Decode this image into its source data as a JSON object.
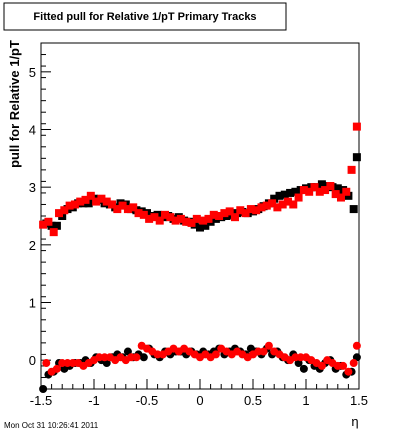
{
  "chart_data": {
    "type": "scatter",
    "title": "Fitted pull for Relative 1/pT  Primary Tracks",
    "xlabel": "η",
    "ylabel": "pull for Relative 1/pT",
    "xlim": [
      -1.5,
      1.5
    ],
    "ylim": [
      -0.5,
      5.5
    ],
    "xticks": [
      "-1.5",
      "-1",
      "-0.5",
      "0",
      "0.5",
      "1",
      "1.5"
    ],
    "yticks": [
      "0",
      "1",
      "2",
      "3",
      "4",
      "5"
    ],
    "timestamp": "Mon Oct 31 10:26:41 2011",
    "colors": {
      "black": "#000000",
      "red": "#ff0000",
      "axis": "#000000"
    },
    "series": [
      {
        "marker": "square",
        "color": "#000000",
        "points": [
          [
            -1.45,
            2.37
          ],
          [
            -1.4,
            2.33
          ],
          [
            -1.35,
            2.33
          ],
          [
            -1.3,
            2.5
          ],
          [
            -1.25,
            2.62
          ],
          [
            -1.2,
            2.65
          ],
          [
            -1.15,
            2.72
          ],
          [
            -1.1,
            2.72
          ],
          [
            -1.05,
            2.72
          ],
          [
            -1.0,
            2.8
          ],
          [
            -0.95,
            2.78
          ],
          [
            -0.9,
            2.72
          ],
          [
            -0.85,
            2.7
          ],
          [
            -0.8,
            2.65
          ],
          [
            -0.75,
            2.72
          ],
          [
            -0.7,
            2.7
          ],
          [
            -0.65,
            2.62
          ],
          [
            -0.6,
            2.6
          ],
          [
            -0.55,
            2.58
          ],
          [
            -0.5,
            2.55
          ],
          [
            -0.45,
            2.5
          ],
          [
            -0.4,
            2.52
          ],
          [
            -0.35,
            2.48
          ],
          [
            -0.3,
            2.5
          ],
          [
            -0.25,
            2.45
          ],
          [
            -0.2,
            2.48
          ],
          [
            -0.15,
            2.42
          ],
          [
            -0.1,
            2.4
          ],
          [
            -0.05,
            2.35
          ],
          [
            0.0,
            2.3
          ],
          [
            0.05,
            2.33
          ],
          [
            0.1,
            2.4
          ],
          [
            0.15,
            2.45
          ],
          [
            0.2,
            2.48
          ],
          [
            0.25,
            2.5
          ],
          [
            0.3,
            2.52
          ],
          [
            0.35,
            2.55
          ],
          [
            0.4,
            2.57
          ],
          [
            0.45,
            2.55
          ],
          [
            0.5,
            2.58
          ],
          [
            0.55,
            2.62
          ],
          [
            0.6,
            2.67
          ],
          [
            0.65,
            2.72
          ],
          [
            0.7,
            2.8
          ],
          [
            0.75,
            2.85
          ],
          [
            0.8,
            2.87
          ],
          [
            0.85,
            2.9
          ],
          [
            0.9,
            2.92
          ],
          [
            0.95,
            2.95
          ],
          [
            1.0,
            2.98
          ],
          [
            1.05,
            3.0
          ],
          [
            1.1,
            3.0
          ],
          [
            1.15,
            3.05
          ],
          [
            1.2,
            3.02
          ],
          [
            1.25,
            3.0
          ],
          [
            1.3,
            2.98
          ],
          [
            1.35,
            2.95
          ],
          [
            1.4,
            2.85
          ],
          [
            1.45,
            2.62
          ],
          [
            1.48,
            3.52
          ]
        ]
      },
      {
        "marker": "square",
        "color": "#ff0000",
        "points": [
          [
            -1.48,
            2.35
          ],
          [
            -1.43,
            2.4
          ],
          [
            -1.38,
            2.22
          ],
          [
            -1.33,
            2.55
          ],
          [
            -1.28,
            2.6
          ],
          [
            -1.23,
            2.68
          ],
          [
            -1.18,
            2.7
          ],
          [
            -1.13,
            2.75
          ],
          [
            -1.08,
            2.78
          ],
          [
            -1.03,
            2.85
          ],
          [
            -0.98,
            2.75
          ],
          [
            -0.93,
            2.8
          ],
          [
            -0.88,
            2.75
          ],
          [
            -0.83,
            2.7
          ],
          [
            -0.78,
            2.62
          ],
          [
            -0.73,
            2.68
          ],
          [
            -0.68,
            2.62
          ],
          [
            -0.63,
            2.65
          ],
          [
            -0.58,
            2.55
          ],
          [
            -0.53,
            2.52
          ],
          [
            -0.48,
            2.45
          ],
          [
            -0.43,
            2.48
          ],
          [
            -0.38,
            2.42
          ],
          [
            -0.33,
            2.52
          ],
          [
            -0.28,
            2.48
          ],
          [
            -0.23,
            2.42
          ],
          [
            -0.18,
            2.45
          ],
          [
            -0.13,
            2.4
          ],
          [
            -0.08,
            2.38
          ],
          [
            -0.03,
            2.45
          ],
          [
            0.03,
            2.42
          ],
          [
            0.08,
            2.45
          ],
          [
            0.13,
            2.52
          ],
          [
            0.18,
            2.5
          ],
          [
            0.23,
            2.55
          ],
          [
            0.28,
            2.58
          ],
          [
            0.33,
            2.48
          ],
          [
            0.38,
            2.6
          ],
          [
            0.43,
            2.55
          ],
          [
            0.48,
            2.62
          ],
          [
            0.53,
            2.6
          ],
          [
            0.58,
            2.65
          ],
          [
            0.63,
            2.68
          ],
          [
            0.68,
            2.72
          ],
          [
            0.73,
            2.65
          ],
          [
            0.78,
            2.7
          ],
          [
            0.83,
            2.75
          ],
          [
            0.88,
            2.7
          ],
          [
            0.93,
            2.82
          ],
          [
            0.98,
            2.95
          ],
          [
            1.03,
            2.92
          ],
          [
            1.08,
            3.0
          ],
          [
            1.13,
            2.92
          ],
          [
            1.18,
            2.95
          ],
          [
            1.23,
            3.02
          ],
          [
            1.28,
            2.88
          ],
          [
            1.33,
            2.82
          ],
          [
            1.38,
            2.92
          ],
          [
            1.43,
            3.3
          ],
          [
            1.48,
            4.05
          ]
        ]
      },
      {
        "marker": "circle",
        "color": "#000000",
        "points": [
          [
            -1.48,
            -0.5
          ],
          [
            -1.43,
            -0.25
          ],
          [
            -1.38,
            -0.2
          ],
          [
            -1.33,
            -0.05
          ],
          [
            -1.28,
            -0.15
          ],
          [
            -1.23,
            -0.1
          ],
          [
            -1.18,
            -0.05
          ],
          [
            -1.13,
            -0.05
          ],
          [
            -1.08,
            0.0
          ],
          [
            -1.03,
            -0.05
          ],
          [
            -0.98,
            0.05
          ],
          [
            -0.93,
            0.0
          ],
          [
            -0.88,
            -0.05
          ],
          [
            -0.83,
            0.05
          ],
          [
            -0.78,
            0.1
          ],
          [
            -0.73,
            0.05
          ],
          [
            -0.68,
            0.15
          ],
          [
            -0.63,
            0.05
          ],
          [
            -0.58,
            0.1
          ],
          [
            -0.53,
            0.05
          ],
          [
            -0.48,
            0.2
          ],
          [
            -0.43,
            0.1
          ],
          [
            -0.38,
            0.05
          ],
          [
            -0.33,
            0.15
          ],
          [
            -0.28,
            0.1
          ],
          [
            -0.23,
            0.15
          ],
          [
            -0.18,
            0.15
          ],
          [
            -0.13,
            0.1
          ],
          [
            -0.08,
            0.15
          ],
          [
            -0.03,
            0.1
          ],
          [
            0.03,
            0.15
          ],
          [
            0.08,
            0.1
          ],
          [
            0.13,
            0.15
          ],
          [
            0.18,
            0.2
          ],
          [
            0.23,
            0.1
          ],
          [
            0.28,
            0.15
          ],
          [
            0.33,
            0.2
          ],
          [
            0.38,
            0.15
          ],
          [
            0.43,
            0.1
          ],
          [
            0.48,
            0.2
          ],
          [
            0.53,
            0.15
          ],
          [
            0.58,
            0.1
          ],
          [
            0.63,
            0.2
          ],
          [
            0.68,
            0.1
          ],
          [
            0.73,
            0.15
          ],
          [
            0.78,
            0.05
          ],
          [
            0.83,
            0.0
          ],
          [
            0.88,
            0.1
          ],
          [
            0.93,
            -0.05
          ],
          [
            0.98,
            -0.15
          ],
          [
            1.03,
            0.0
          ],
          [
            1.08,
            -0.1
          ],
          [
            1.13,
            -0.15
          ],
          [
            1.18,
            -0.05
          ],
          [
            1.23,
            0.0
          ],
          [
            1.28,
            -0.15
          ],
          [
            1.33,
            -0.1
          ],
          [
            1.38,
            -0.25
          ],
          [
            1.43,
            -0.2
          ],
          [
            1.48,
            0.05
          ]
        ]
      },
      {
        "marker": "circle",
        "color": "#ff0000",
        "points": [
          [
            -1.45,
            -0.05
          ],
          [
            -1.4,
            -0.2
          ],
          [
            -1.35,
            -0.15
          ],
          [
            -1.3,
            -0.05
          ],
          [
            -1.25,
            -0.05
          ],
          [
            -1.2,
            -0.05
          ],
          [
            -1.15,
            -0.05
          ],
          [
            -1.1,
            -0.1
          ],
          [
            -1.05,
            -0.05
          ],
          [
            -1.0,
            0.0
          ],
          [
            -0.95,
            0.05
          ],
          [
            -0.9,
            0.05
          ],
          [
            -0.85,
            0.05
          ],
          [
            -0.8,
            0.0
          ],
          [
            -0.75,
            0.05
          ],
          [
            -0.7,
            0.0
          ],
          [
            -0.65,
            0.05
          ],
          [
            -0.6,
            0.05
          ],
          [
            -0.55,
            0.25
          ],
          [
            -0.5,
            0.2
          ],
          [
            -0.45,
            0.15
          ],
          [
            -0.4,
            0.1
          ],
          [
            -0.35,
            0.1
          ],
          [
            -0.3,
            0.15
          ],
          [
            -0.25,
            0.2
          ],
          [
            -0.2,
            0.15
          ],
          [
            -0.15,
            0.2
          ],
          [
            -0.1,
            0.15
          ],
          [
            -0.05,
            0.1
          ],
          [
            0.0,
            0.05
          ],
          [
            0.05,
            0.1
          ],
          [
            0.1,
            0.05
          ],
          [
            0.15,
            0.1
          ],
          [
            0.2,
            0.2
          ],
          [
            0.25,
            0.15
          ],
          [
            0.3,
            0.1
          ],
          [
            0.35,
            0.15
          ],
          [
            0.4,
            0.1
          ],
          [
            0.45,
            0.05
          ],
          [
            0.5,
            0.1
          ],
          [
            0.55,
            0.15
          ],
          [
            0.6,
            0.15
          ],
          [
            0.65,
            0.25
          ],
          [
            0.7,
            0.15
          ],
          [
            0.75,
            0.1
          ],
          [
            0.8,
            0.05
          ],
          [
            0.85,
            0.0
          ],
          [
            0.9,
            0.05
          ],
          [
            0.95,
            0.05
          ],
          [
            1.0,
            0.05
          ],
          [
            1.05,
            0.0
          ],
          [
            1.1,
            -0.05
          ],
          [
            1.15,
            -0.1
          ],
          [
            1.2,
            0.0
          ],
          [
            1.25,
            -0.05
          ],
          [
            1.3,
            -0.1
          ],
          [
            1.35,
            -0.1
          ],
          [
            1.4,
            -0.2
          ],
          [
            1.45,
            -0.05
          ],
          [
            1.48,
            0.25
          ]
        ]
      }
    ]
  }
}
